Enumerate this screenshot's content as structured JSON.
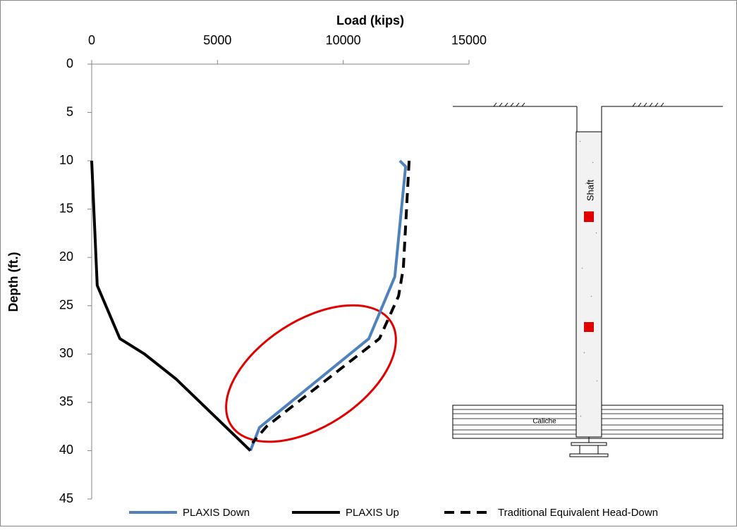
{
  "chart_data": {
    "type": "line",
    "x_label": "Load (kips)",
    "y_label": "Depth (ft.)",
    "xlim": [
      0,
      15000
    ],
    "xticks": [
      0,
      5000,
      10000,
      15000
    ],
    "ylim": [
      0,
      45
    ],
    "yticks": [
      0,
      5,
      10,
      15,
      20,
      25,
      30,
      35,
      40,
      45
    ],
    "y_inverted": true,
    "x_axis_position": "top",
    "legend": "bottom",
    "series": [
      {
        "name": "PLAXIS Down",
        "color": "#4f81bd",
        "linestyle": "solid",
        "x": [
          12250,
          12480,
          12050,
          11020,
          6670,
          6310
        ],
        "values": [
          10,
          10.6,
          22,
          28.4,
          37.6,
          40
        ]
      },
      {
        "name": "PLAXIS Up",
        "color": "#000000",
        "linestyle": "solid",
        "x": [
          0,
          220,
          1120,
          2100,
          3360,
          6310
        ],
        "values": [
          10,
          22.9,
          28.4,
          30,
          32.6,
          40
        ]
      },
      {
        "name": "Traditional Equivalent Head-Down",
        "color": "#000000",
        "linestyle": "dashed",
        "x": [
          12620,
          12390,
          12200,
          11440,
          6950,
          6390
        ],
        "values": [
          10,
          21.1,
          24,
          28.4,
          37.5,
          39.2
        ]
      }
    ],
    "diagram_labels": [
      "Shaft",
      "Caliche"
    ]
  }
}
